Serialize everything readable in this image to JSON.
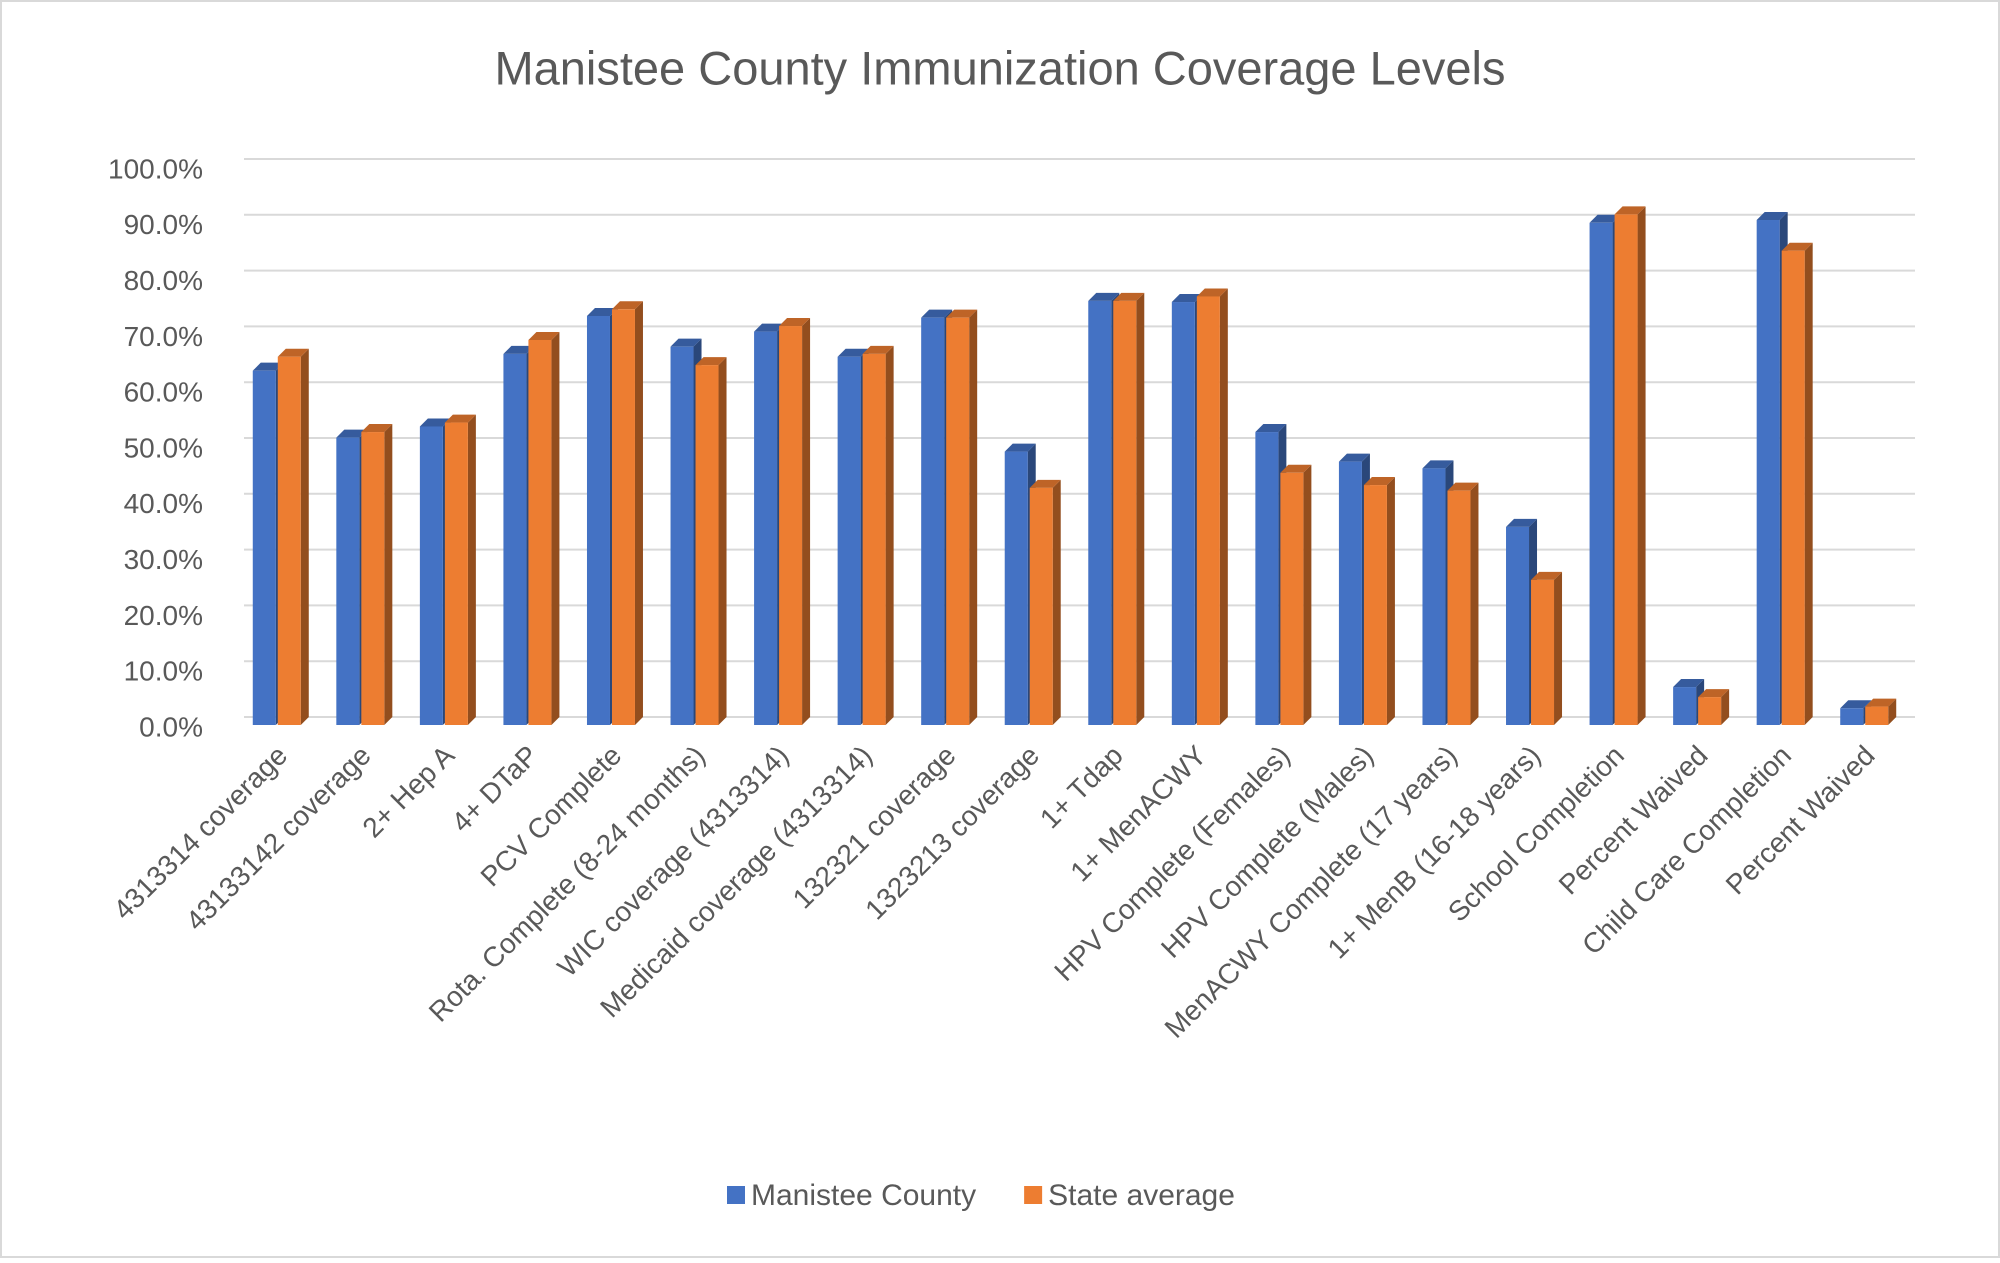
{
  "chart_data": {
    "type": "bar3d",
    "title": "Manistee County Immunization Coverage Levels",
    "categories": [
      "4313314 coverage",
      "43133142 coverage",
      "2+ Hep A",
      "4+ DTaP",
      "PCV Complete",
      "Rota. Complete (8-24 months)",
      "WIC coverage (4313314)",
      "Medicaid coverage (4313314)",
      "132321 coverage",
      "1323213 coverage",
      "1+ Tdap",
      "1+ MenACWY",
      "HPV Complete (Females)",
      "HPV Complete (Males)",
      "MenACWY Complete (17 years)",
      "1+ MenB (16-18 years)",
      "School Completion",
      "Percent Waived",
      "Child Care Completion",
      "Percent Waived"
    ],
    "series": [
      {
        "name": "Manistee County",
        "color": "#4472c4",
        "values": [
          63.5,
          51.5,
          53.5,
          66.5,
          73.3,
          67.8,
          70.5,
          66,
          73,
          49,
          76,
          75.8,
          52.5,
          47.2,
          46,
          35.5,
          90,
          6.8,
          90.5,
          3
        ]
      },
      {
        "name": "State average",
        "color": "#ed7d31",
        "values": [
          66,
          52.5,
          54.2,
          69,
          74.5,
          64.5,
          71.5,
          66.5,
          73,
          42.5,
          76,
          76.8,
          45.2,
          43,
          42,
          26,
          91.5,
          5,
          85,
          3.3
        ]
      }
    ],
    "ylim": [
      0,
      100
    ],
    "yticks": [
      {
        "value": 0,
        "label": "0.0%"
      },
      {
        "value": 10,
        "label": "10.0%"
      },
      {
        "value": 20,
        "label": "20.0%"
      },
      {
        "value": 30,
        "label": "30.0%"
      },
      {
        "value": 40,
        "label": "40.0%"
      },
      {
        "value": 50,
        "label": "50.0%"
      },
      {
        "value": 60,
        "label": "60.0%"
      },
      {
        "value": 70,
        "label": "70.0%"
      },
      {
        "value": 80,
        "label": "80.0%"
      },
      {
        "value": 90,
        "label": "90.0%"
      },
      {
        "value": 100,
        "label": "100.0%"
      }
    ],
    "grid": true,
    "legend": "bottom"
  }
}
